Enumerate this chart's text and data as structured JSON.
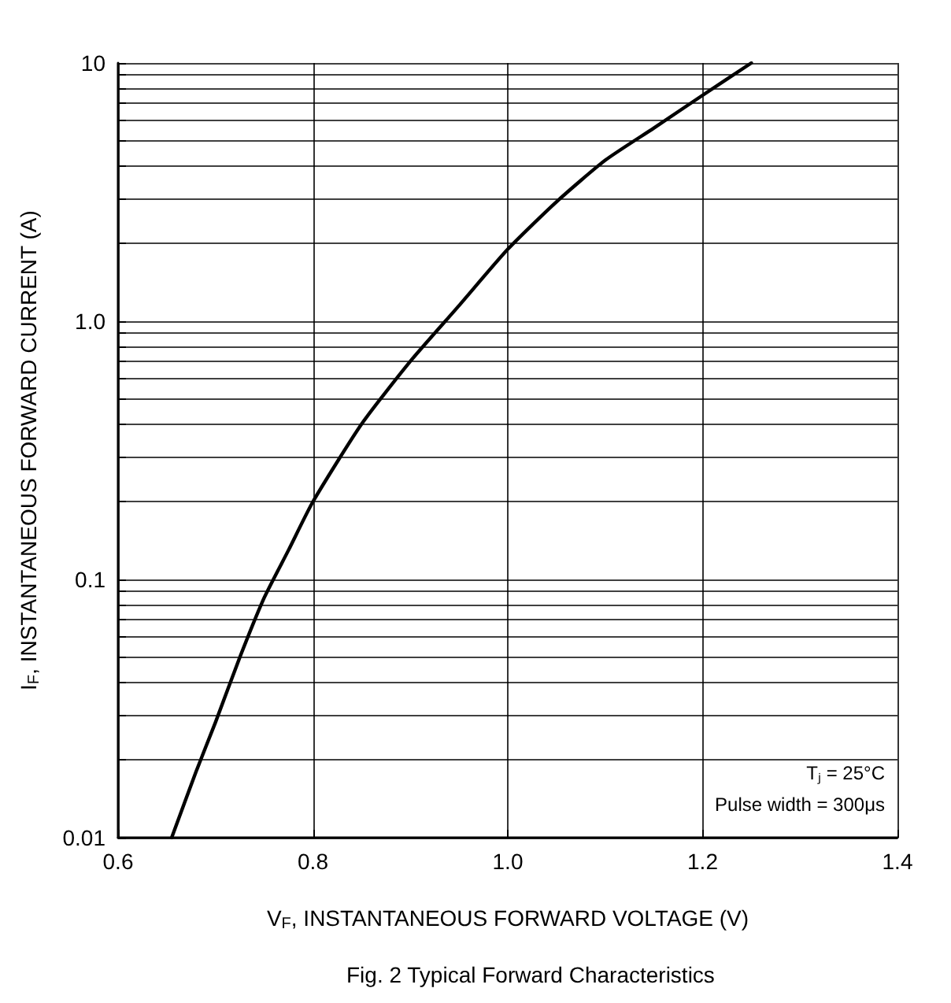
{
  "chart_data": {
    "type": "line",
    "xlabel": "V$_{F}$, INSTANTANEOUS FORWARD VOLTAGE (V)",
    "ylabel": "I$_{F}$, INSTANTANEOUS FORWARD CURRENT (A)",
    "annotations": [
      "Tⱼ = 25°C",
      "Pulse width = 300μs",
      "Fig. 2 Typical Forward Characteristics"
    ],
    "series": [
      {
        "color": "#000000",
        "x": [
          0.655,
          0.68,
          0.7,
          0.725,
          0.75,
          0.775,
          0.8,
          0.85,
          0.9,
          0.95,
          1.0,
          1.05,
          1.1,
          1.15,
          1.2,
          1.25
        ],
        "values": [
          0.01,
          0.018,
          0.028,
          0.05,
          0.085,
          0.13,
          0.2,
          0.4,
          0.7,
          1.15,
          1.9,
          2.9,
          4.2,
          5.6,
          7.5,
          10
        ]
      }
    ],
    "xlim": [
      0.6,
      1.4
    ],
    "xticks": [
      {
        "value": 0.6,
        "label": "0.6"
      },
      {
        "value": 0.8,
        "label": "0.8"
      },
      {
        "value": 1.0,
        "label": "1.0"
      },
      {
        "value": 1.2,
        "label": "1.2"
      },
      {
        "value": 1.4,
        "label": "1.4"
      }
    ],
    "ylim": [
      0.01,
      10
    ],
    "yticks": [
      0.01,
      {
        "value": 0.02,
        "label": null
      },
      {
        "value": 0.03,
        "label": null
      },
      {
        "value": 0.04,
        "label": null
      },
      {
        "value": 0.05,
        "label": null
      },
      {
        "value": 0.06,
        "label": null
      },
      {
        "value": 0.07,
        "label": null
      },
      {
        "value": 0.08,
        "label": null
      },
      {
        "value": 0.09,
        "label": null
      },
      0.1,
      {
        "value": 0.2,
        "label": null
      },
      {
        "value": 0.3,
        "label": null
      },
      {
        "value": 0.4,
        "label": null
      },
      {
        "value": 0.5,
        "label": null
      },
      {
        "value": 0.6,
        "label": null
      },
      {
        "value": 0.7,
        "label": null
      },
      {
        "value": 0.8,
        "label": null
      },
      {
        "value": 0.9,
        "label": null
      },
      {
        "value": 1,
        "label": "1.0"
      },
      {
        "value": 2,
        "label": null
      },
      {
        "value": 3,
        "label": null
      },
      {
        "value": 4,
        "label": null
      },
      {
        "value": 5,
        "label": null
      },
      {
        "value": 6,
        "label": null
      },
      {
        "value": 7,
        "label": null
      },
      {
        "value": 8,
        "label": null
      },
      {
        "value": 9,
        "label": null
      },
      10
    ],
    "log": "y",
    "grid": true,
    "marker": "none",
    "line_style": "solid"
  }
}
